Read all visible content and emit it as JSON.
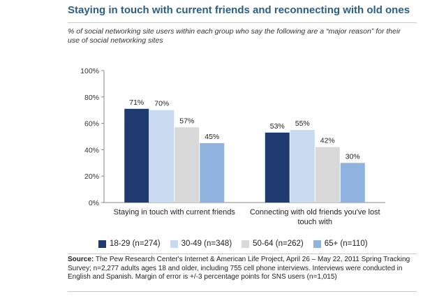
{
  "title": "Staying in touch with current friends and reconnecting with old ones",
  "subtitle": "% of social networking site users within each group who say the following are a “major reason” for their use of social networking sites",
  "chart_data": {
    "type": "bar",
    "categories": [
      "Staying in touch with current friends",
      "Connecting with old friends you've lost touch with"
    ],
    "series": [
      {
        "name": "18-29 (n=274)",
        "values": [
          71,
          53
        ],
        "color": "#1e3a6e"
      },
      {
        "name": "30-49 (n=348)",
        "values": [
          70,
          55
        ],
        "color": "#c7daef"
      },
      {
        "name": "50-64 (n=262)",
        "values": [
          57,
          42
        ],
        "color": "#d9d9d9"
      },
      {
        "name": "65+ (n=110)",
        "values": [
          45,
          30
        ],
        "color": "#8fb2df"
      }
    ],
    "data_labels": [
      [
        "71%",
        "53%"
      ],
      [
        "70%",
        "55%"
      ],
      [
        "57%",
        "42%"
      ],
      [
        "45%",
        "30%"
      ]
    ],
    "ylim": [
      0,
      100
    ],
    "yticks": [
      "0%",
      "20%",
      "40%",
      "60%",
      "80%",
      "100%"
    ],
    "grid": false,
    "legend_position": "bottom"
  },
  "source": {
    "label": "Source:",
    "text": "The Pew Research Center's Internet & American Life Project, April 26 – May 22, 2011 Spring Tracking Survey; n=2,277 adults ages 18 and older, including 755 cell phone interviews. Interviews were conducted in English and Spanish. Margin of error is +/-3 percentage points for SNS users (n=1,015)"
  }
}
